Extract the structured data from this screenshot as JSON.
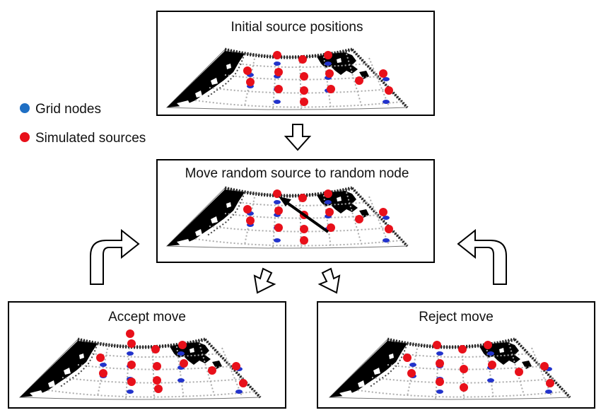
{
  "panels": {
    "initial": {
      "title": "Initial source positions"
    },
    "move": {
      "title": "Move random source to random node"
    },
    "accept": {
      "title": "Accept move"
    },
    "reject": {
      "title": "Reject move"
    }
  },
  "legend": {
    "grid_nodes": {
      "label": "Grid nodes",
      "color": "#1f6fc4"
    },
    "simulated_sources": {
      "label": "Simulated sources",
      "color": "#e8101a"
    }
  },
  "colors": {
    "node": "#2233cc",
    "source": "#e8101a",
    "land": "#000000",
    "panel_border": "#000000"
  }
}
